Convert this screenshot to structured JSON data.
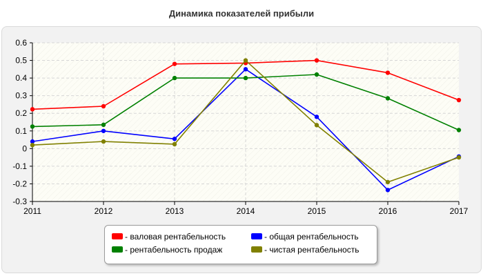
{
  "chart_data": {
    "type": "line",
    "title": "Динамика показателей прибыли",
    "x": [
      "2011",
      "2012",
      "2013",
      "2014",
      "2015",
      "2016",
      "2017"
    ],
    "yticks": [
      "0.6",
      "0.5",
      "0.4",
      "0.3",
      "0.2",
      "0.1",
      "0",
      "-0.1",
      "-0.2",
      "-0.3"
    ],
    "ylim": [
      -0.3,
      0.6
    ],
    "grid": true,
    "legend_position": "bottom",
    "series": [
      {
        "name": "- валовая рентабельность",
        "color": "#ff0000",
        "values": [
          0.223,
          0.24,
          0.48,
          0.485,
          0.5,
          0.43,
          0.275
        ]
      },
      {
        "name": "- общая рентабельность",
        "color": "#0000ff",
        "values": [
          0.04,
          0.1,
          0.055,
          0.45,
          0.18,
          -0.235,
          -0.045
        ]
      },
      {
        "name": "- рентабельность продаж",
        "color": "#008000",
        "values": [
          0.125,
          0.135,
          0.4,
          0.4,
          0.42,
          0.285,
          0.105
        ]
      },
      {
        "name": "- чистая рентабельность",
        "color": "#808000",
        "values": [
          0.02,
          0.04,
          0.025,
          0.5,
          0.133,
          -0.19,
          -0.05
        ]
      }
    ]
  }
}
